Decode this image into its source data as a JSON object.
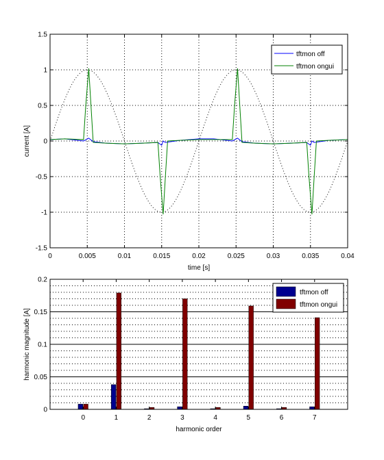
{
  "chart_data": [
    {
      "type": "line",
      "title": "",
      "xlabel": "time [s]",
      "ylabel": "current [A]",
      "xlim": [
        0,
        0.04
      ],
      "ylim": [
        -1.5,
        1.5
      ],
      "xticks": [
        0,
        0.005,
        0.01,
        0.015,
        0.02,
        0.025,
        0.03,
        0.035,
        0.04
      ],
      "xtick_labels": [
        "0",
        "0.005",
        "0.01",
        "0.015",
        "0.02",
        "0.025",
        "0.03",
        "0.035",
        "0.04"
      ],
      "yticks": [
        -1.5,
        -1,
        -0.5,
        0,
        0.5,
        1,
        1.5
      ],
      "ytick_labels": [
        "-1.5",
        "-1",
        "-0.5",
        "0",
        "0.5",
        "1",
        "1.5"
      ],
      "grid": true,
      "legend_position": "top-right",
      "reference": {
        "style": "dotted",
        "color": "#000000",
        "shape": "sine",
        "amplitude": 1.0,
        "period": 0.02
      },
      "series": [
        {
          "name": "tftmon off",
          "color": "#0000ff",
          "x": [
            0,
            0.002,
            0.0045,
            0.0052,
            0.0058,
            0.0075,
            0.01,
            0.0125,
            0.0145,
            0.015,
            0.0152,
            0.0155,
            0.0175,
            0.02,
            0.022,
            0.0245,
            0.0252,
            0.0258,
            0.0275,
            0.03,
            0.0325,
            0.0345,
            0.035,
            0.0352,
            0.0355,
            0.0375,
            0.04
          ],
          "y": [
            0.02,
            0.03,
            0.0,
            0.04,
            -0.01,
            -0.03,
            -0.04,
            -0.03,
            -0.02,
            -0.06,
            0.0,
            -0.02,
            0.01,
            0.03,
            0.03,
            0.0,
            0.04,
            -0.01,
            -0.03,
            -0.04,
            -0.03,
            -0.02,
            -0.06,
            0.0,
            -0.02,
            0.01,
            0.02
          ]
        },
        {
          "name": "tftmon ongui",
          "color": "#008000",
          "x": [
            0,
            0.002,
            0.0045,
            0.0048,
            0.0052,
            0.0055,
            0.0058,
            0.0075,
            0.01,
            0.0125,
            0.0145,
            0.0148,
            0.0152,
            0.0155,
            0.0158,
            0.0175,
            0.02,
            0.022,
            0.0245,
            0.0248,
            0.0252,
            0.0255,
            0.0258,
            0.0275,
            0.03,
            0.0325,
            0.0345,
            0.0348,
            0.0352,
            0.0355,
            0.0358,
            0.0375,
            0.04
          ],
          "y": [
            0.02,
            0.03,
            0.02,
            0.5,
            1.02,
            0.5,
            -0.02,
            -0.03,
            -0.04,
            -0.03,
            -0.02,
            -0.5,
            -1.03,
            -0.5,
            0.0,
            0.01,
            0.02,
            0.02,
            0.02,
            0.5,
            1.02,
            0.5,
            -0.02,
            -0.03,
            -0.04,
            -0.03,
            -0.02,
            -0.5,
            -1.03,
            -0.5,
            0.0,
            0.01,
            0.02
          ]
        }
      ]
    },
    {
      "type": "bar",
      "title": "",
      "xlabel": "harmonic order",
      "ylabel": "harmonic magnitude [A]",
      "categories": [
        "0",
        "1",
        "2",
        "3",
        "4",
        "5",
        "6",
        "7"
      ],
      "xlim": [
        -1,
        8
      ],
      "ylim": [
        0,
        0.2
      ],
      "yticks": [
        0,
        0.05,
        0.1,
        0.15,
        0.2
      ],
      "ytick_labels": [
        "0",
        "0.05",
        "0.1",
        "0.15",
        "0.2"
      ],
      "grid": true,
      "legend_position": "top-right",
      "series": [
        {
          "name": "tftmon off",
          "color": "#00008f",
          "values": [
            0.008,
            0.038,
            0.001,
            0.004,
            0.001,
            0.005,
            0.001,
            0.004
          ]
        },
        {
          "name": "tftmon ongui",
          "color": "#800000",
          "values": [
            0.008,
            0.179,
            0.003,
            0.17,
            0.003,
            0.159,
            0.003,
            0.141
          ]
        }
      ]
    }
  ]
}
